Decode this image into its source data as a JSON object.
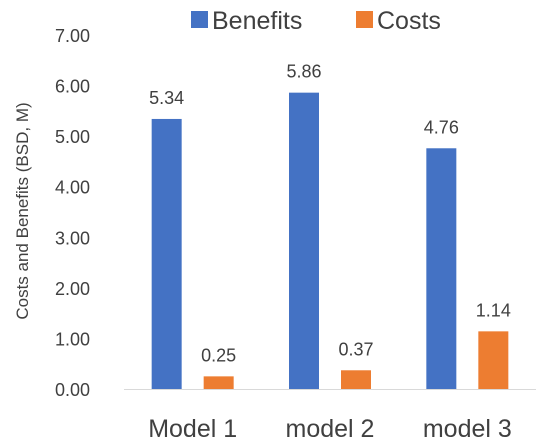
{
  "chart_data": {
    "type": "bar",
    "categories": [
      "Model 1",
      "model 2",
      "model 3"
    ],
    "series": [
      {
        "name": "Benefits",
        "values": [
          5.34,
          5.86,
          4.76
        ],
        "color": "#4472C4"
      },
      {
        "name": "Costs",
        "values": [
          0.25,
          0.37,
          1.14
        ],
        "color": "#ED7D31"
      }
    ],
    "data_labels": [
      [
        "5.34",
        "5.86",
        "4.76"
      ],
      [
        "0.25",
        "0.37",
        "1.14"
      ]
    ],
    "ylabel": "Costs and Benefits (BSD, M)",
    "xlabel": "",
    "ylim": [
      0,
      7
    ],
    "yticks": [
      "0.00",
      "1.00",
      "2.00",
      "3.00",
      "4.00",
      "5.00",
      "6.00",
      "7.00"
    ],
    "legend_position": "top",
    "grid": false
  }
}
